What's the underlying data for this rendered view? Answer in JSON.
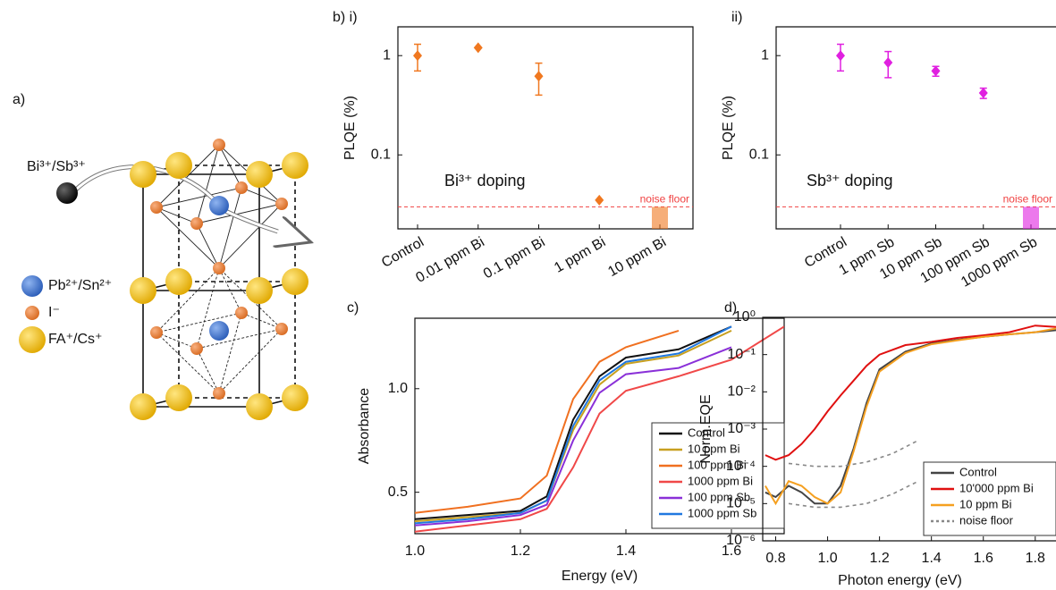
{
  "panel_a": {
    "label": "a)",
    "dopant": "Bi³⁺/Sb³⁺",
    "legend": [
      "Pb²⁺/Sn²⁺",
      "I⁻",
      "FA⁺/Cs⁺"
    ]
  },
  "chart_data": [
    {
      "type": "point",
      "panel_label": "b) i)",
      "ylabel": "PLQE (%)",
      "annotation": "Bi³⁺ doping",
      "categories": [
        "Control",
        "0.01 ppm Bi",
        "0.1 ppm Bi",
        "1 ppm Bi",
        "10 ppm Bi"
      ],
      "values": [
        1.0,
        1.2,
        0.62,
        0.035,
        null
      ],
      "errors": [
        0.3,
        null,
        0.22,
        null,
        null
      ],
      "color": "#f07820",
      "log_y": true,
      "ylim": [
        0.018,
        1.95
      ],
      "yticks": [
        0.1,
        1
      ],
      "noise_floor": {
        "value": 0.03,
        "label": "noise floor",
        "color": "#f04040"
      }
    },
    {
      "type": "point",
      "panel_label": "ii)",
      "ylabel": "PLQE (%)",
      "annotation": "Sb³⁺ doping",
      "categories": [
        "Control",
        "1 ppm Sb",
        "10 ppm Sb",
        "100 ppm Sb",
        "1000 ppm Sb"
      ],
      "values": [
        1.0,
        0.85,
        0.7,
        0.42,
        null
      ],
      "errors": [
        0.3,
        0.25,
        0.08,
        0.05,
        null
      ],
      "color": "#e020e0",
      "log_y": true,
      "ylim": [
        0.018,
        1.95
      ],
      "yticks": [
        0.1,
        1
      ],
      "noise_floor": {
        "value": 0.03,
        "label": "noise floor",
        "color": "#f04040"
      }
    },
    {
      "type": "line",
      "panel_label": "c)",
      "xlabel": "Energy (eV)",
      "ylabel": "Absorbance",
      "x": [
        1.0,
        1.1,
        1.2,
        1.25,
        1.3,
        1.35,
        1.4,
        1.5,
        1.6,
        1.7
      ],
      "xlim": [
        1.0,
        1.7
      ],
      "xticks": [
        {
          "value": 1,
          "label": "1.0"
        },
        1.2,
        1.4,
        1.6
      ],
      "ylim": [
        0.3,
        1.34
      ],
      "yticks": [
        0.5,
        {
          "value": 1,
          "label": "1.0"
        }
      ],
      "legend": "lower right",
      "series": [
        {
          "name": "Control",
          "color": "#111111",
          "values": [
            0.37,
            0.39,
            0.41,
            0.48,
            0.85,
            1.06,
            1.15,
            1.19,
            1.3,
            null
          ]
        },
        {
          "name": "10 ppm Bi",
          "color": "#c8a020",
          "values": [
            0.36,
            0.38,
            0.4,
            0.46,
            0.8,
            1.02,
            1.12,
            1.16,
            1.28,
            null
          ]
        },
        {
          "name": "100 ppm Bi",
          "color": "#f07020",
          "values": [
            0.4,
            0.43,
            0.47,
            0.58,
            0.95,
            1.13,
            1.2,
            1.28,
            null,
            null
          ]
        },
        {
          "name": "1000 ppm Bi",
          "color": "#f04848",
          "values": [
            0.31,
            0.34,
            0.37,
            0.42,
            0.62,
            0.88,
            0.99,
            1.06,
            1.14,
            1.3
          ]
        },
        {
          "name": "100 ppm Sb",
          "color": "#8a30d8",
          "values": [
            0.34,
            0.36,
            0.39,
            0.44,
            0.75,
            0.98,
            1.07,
            1.1,
            1.2,
            null
          ]
        },
        {
          "name": "1000 ppm Sb",
          "color": "#2078e0",
          "values": [
            0.35,
            0.37,
            0.4,
            0.46,
            0.82,
            1.04,
            1.13,
            1.17,
            1.3,
            null
          ]
        }
      ]
    },
    {
      "type": "line",
      "panel_label": "d)",
      "xlabel": "Photon energy (eV)",
      "ylabel": "Norm.EQE",
      "log_y": true,
      "xlim": [
        0.75,
        1.88
      ],
      "xticks": [
        0.8,
        {
          "value": 1,
          "label": "1.0"
        },
        1.2,
        1.4,
        1.6,
        1.8
      ],
      "ylim": [
        1e-06,
        1
      ],
      "yticks": [
        {
          "value": 1e-06,
          "label": "10⁻⁶"
        },
        {
          "value": 1e-05,
          "label": "10⁻⁵"
        },
        {
          "value": 0.0001,
          "label": "10⁻⁴"
        },
        {
          "value": 0.001,
          "label": "10⁻³"
        },
        {
          "value": 0.01,
          "label": "10⁻²"
        },
        {
          "value": 0.1,
          "label": "10⁻¹"
        },
        {
          "value": 1,
          "label": "10⁰"
        }
      ],
      "legend": "lower right",
      "series": [
        {
          "name": "Control",
          "color": "#444444",
          "x": [
            0.76,
            0.8,
            0.85,
            0.9,
            0.95,
            1.0,
            1.05,
            1.1,
            1.15,
            1.2,
            1.3,
            1.4,
            1.5,
            1.6,
            1.7,
            1.8,
            1.88
          ],
          "values": [
            2e-05,
            1.5e-05,
            3e-05,
            2e-05,
            1e-05,
            1e-05,
            3e-05,
            0.0003,
            0.005,
            0.04,
            0.12,
            0.2,
            0.25,
            0.3,
            0.35,
            0.4,
            0.45
          ]
        },
        {
          "name": "10'000 ppm Bi",
          "color": "#e01010",
          "x": [
            0.76,
            0.8,
            0.85,
            0.9,
            0.95,
            1.0,
            1.05,
            1.1,
            1.15,
            1.2,
            1.3,
            1.4,
            1.5,
            1.6,
            1.7,
            1.8,
            1.88
          ],
          "values": [
            0.0002,
            0.00015,
            0.0002,
            0.0004,
            0.001,
            0.003,
            0.008,
            0.02,
            0.05,
            0.1,
            0.18,
            0.22,
            0.28,
            0.33,
            0.4,
            0.6,
            0.55
          ]
        },
        {
          "name": "10 ppm Bi",
          "color": "#f5a020",
          "x": [
            0.76,
            0.8,
            0.85,
            0.9,
            0.95,
            1.0,
            1.05,
            1.1,
            1.15,
            1.2,
            1.3,
            1.4,
            1.5,
            1.6,
            1.7,
            1.8,
            1.88
          ],
          "values": [
            3e-05,
            1e-05,
            4e-05,
            3e-05,
            1.5e-05,
            1e-05,
            2e-05,
            0.00025,
            0.004,
            0.035,
            0.11,
            0.19,
            0.24,
            0.3,
            0.35,
            0.4,
            0.5
          ]
        },
        {
          "name": "noise floor",
          "color": "#888888",
          "style": "dashed",
          "x": [
            0.85,
            0.95,
            1.05,
            1.15,
            1.25,
            1.35,
            null,
            0.85,
            0.95,
            1.05,
            1.15,
            1.25,
            1.35
          ],
          "values": [
            0.00012,
            0.0001,
            0.0001,
            0.00013,
            0.00022,
            0.0005,
            null,
            1e-05,
            8e-06,
            8e-06,
            1e-05,
            1.8e-05,
            4e-05
          ]
        }
      ]
    }
  ]
}
